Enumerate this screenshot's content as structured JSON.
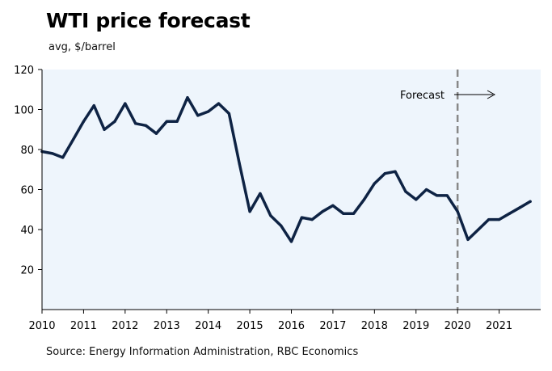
{
  "title": "WTI price forecast",
  "subtitle": "avg, $/barrel",
  "source": "Source: Energy Information Administration, RBC Economics",
  "colors": {
    "line": "#0e2344",
    "plot_background": "#eef5fc",
    "forecast_line": "#888888",
    "axis": "#000000"
  },
  "chart_data": {
    "type": "line",
    "title": "WTI price forecast",
    "ylabel": "avg, $/barrel",
    "xlabel": "",
    "xlim": [
      2010,
      2022
    ],
    "ylim": [
      0,
      120
    ],
    "yticks": [
      20,
      40,
      60,
      80,
      100,
      120
    ],
    "xticks": [
      "2010",
      "2011",
      "2012",
      "2013",
      "2014",
      "2015",
      "2016",
      "2017",
      "2018",
      "2019",
      "2020",
      "2021"
    ],
    "forecast_start": 2020,
    "annotation": "Forecast",
    "series": [
      {
        "name": "WTI",
        "points": [
          [
            2010.0,
            79
          ],
          [
            2010.25,
            78
          ],
          [
            2010.5,
            76
          ],
          [
            2010.75,
            85
          ],
          [
            2011.0,
            94
          ],
          [
            2011.25,
            102
          ],
          [
            2011.5,
            90
          ],
          [
            2011.75,
            94
          ],
          [
            2012.0,
            103
          ],
          [
            2012.25,
            93
          ],
          [
            2012.5,
            92
          ],
          [
            2012.75,
            88
          ],
          [
            2013.0,
            94
          ],
          [
            2013.25,
            94
          ],
          [
            2013.5,
            106
          ],
          [
            2013.75,
            97
          ],
          [
            2014.0,
            99
          ],
          [
            2014.25,
            103
          ],
          [
            2014.5,
            98
          ],
          [
            2014.75,
            73
          ],
          [
            2015.0,
            49
          ],
          [
            2015.25,
            58
          ],
          [
            2015.5,
            47
          ],
          [
            2015.75,
            42
          ],
          [
            2016.0,
            34
          ],
          [
            2016.25,
            46
          ],
          [
            2016.5,
            45
          ],
          [
            2016.75,
            49
          ],
          [
            2017.0,
            52
          ],
          [
            2017.25,
            48
          ],
          [
            2017.5,
            48
          ],
          [
            2017.75,
            55
          ],
          [
            2018.0,
            63
          ],
          [
            2018.25,
            68
          ],
          [
            2018.5,
            69
          ],
          [
            2018.75,
            59
          ],
          [
            2019.0,
            55
          ],
          [
            2019.25,
            60
          ],
          [
            2019.5,
            57
          ],
          [
            2019.75,
            57
          ],
          [
            2020.0,
            49
          ],
          [
            2020.25,
            35
          ],
          [
            2020.5,
            40
          ],
          [
            2020.75,
            45
          ],
          [
            2021.0,
            45
          ],
          [
            2021.25,
            48
          ],
          [
            2021.5,
            51
          ],
          [
            2021.75,
            54
          ]
        ]
      }
    ]
  }
}
